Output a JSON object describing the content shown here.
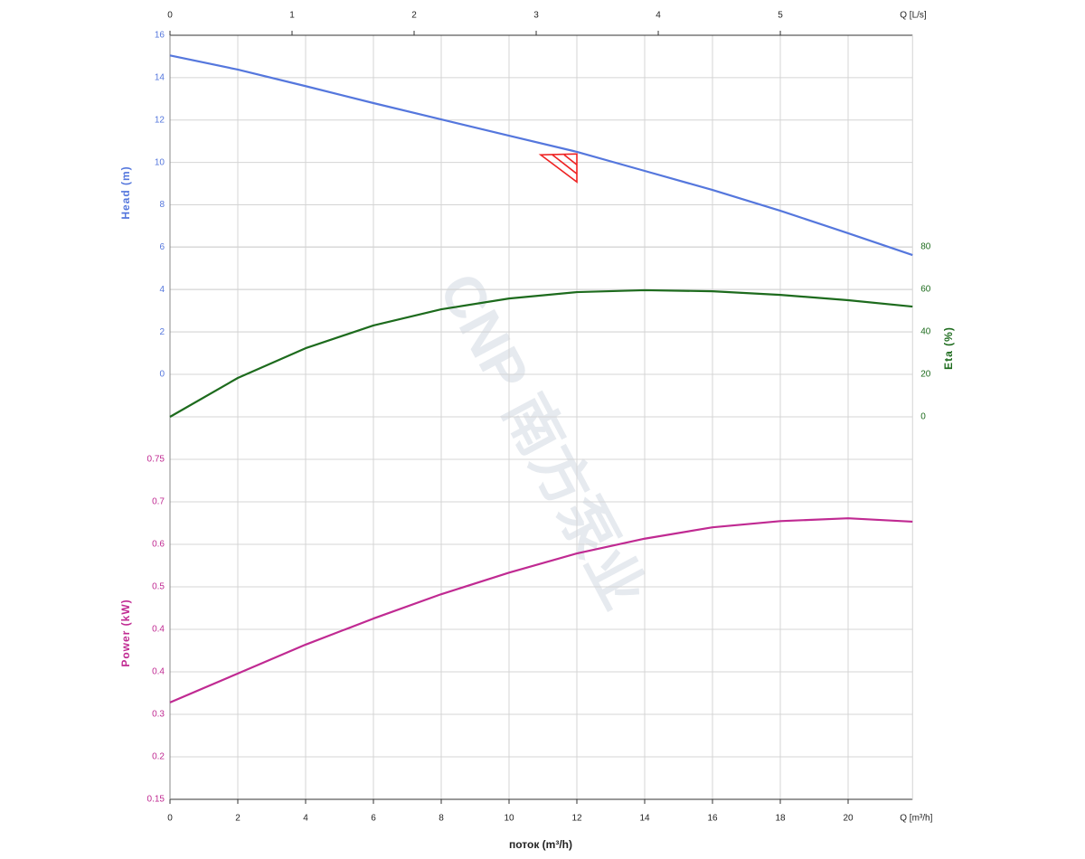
{
  "chart_data": {
    "type": "line",
    "x": [
      0,
      2,
      4,
      6,
      8,
      10,
      12,
      14,
      16,
      18,
      20,
      21.9
    ],
    "xlim": [
      0,
      21.9
    ],
    "xticks": [
      0,
      2,
      4,
      6,
      8,
      10,
      12,
      14,
      16,
      18,
      20
    ],
    "x_unit": "Q [m³/h]",
    "xlabel": "поток (m³/h)",
    "x2lim": [
      0,
      6.083
    ],
    "x2ticks": [
      0,
      1,
      2,
      3,
      4,
      5
    ],
    "x2_unit": "Q [L/s]",
    "ylabel": "Head (m)",
    "ylim": [
      0,
      16
    ],
    "yticks": [
      0,
      2,
      4,
      6,
      8,
      10,
      12,
      14,
      16
    ],
    "y2label": "Eta (%)",
    "y2lim": [
      0,
      80
    ],
    "y2ticks": [
      0,
      20,
      40,
      60,
      80
    ],
    "y3label": "Power (kW)",
    "y3lim": [
      0.15,
      0.75
    ],
    "y3ticks": [
      {
        "value": 0.15,
        "label": "0.15"
      },
      {
        "value": 0.225,
        "label": "0.2"
      },
      {
        "value": 0.3,
        "label": "0.3"
      },
      {
        "value": 0.375,
        "label": "0.4"
      },
      {
        "value": 0.45,
        "label": "0.4"
      },
      {
        "value": 0.525,
        "label": "0.5"
      },
      {
        "value": 0.6,
        "label": "0.6"
      },
      {
        "value": 0.675,
        "label": "0.7"
      },
      {
        "value": 0.75,
        "label": "0.75"
      }
    ],
    "grid": true,
    "series": [
      {
        "axis": "y",
        "color": "#5577dd",
        "values": [
          15.05,
          14.38,
          13.6,
          12.8,
          12.03,
          11.26,
          10.5,
          9.6,
          8.7,
          7.72,
          6.66,
          5.63
        ]
      },
      {
        "axis": "y2",
        "color": "#1d6b1d",
        "values": [
          0,
          18.3,
          32.3,
          43,
          50.6,
          55.7,
          58.7,
          59.6,
          59.1,
          57.4,
          54.9,
          51.9
        ]
      },
      {
        "axis": "y3",
        "color": "#c02a92",
        "values": [
          0.321,
          0.372,
          0.423,
          0.469,
          0.512,
          0.55,
          0.584,
          0.61,
          0.63,
          0.641,
          0.646,
          0.64
        ]
      }
    ],
    "duty_point": {
      "x": 12,
      "y": 10.4,
      "color": "#ee2222"
    },
    "watermark": "CNP 南方泵业"
  }
}
